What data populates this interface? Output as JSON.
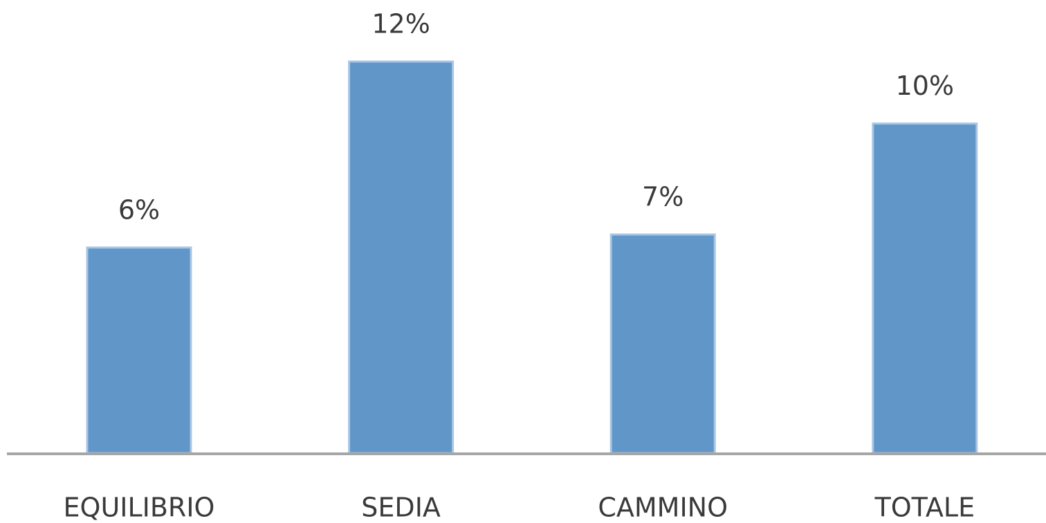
{
  "chart_data": {
    "type": "bar",
    "categories": [
      "EQUILIBRIO",
      "SEDIA",
      "CAMMINO",
      "TOTALE"
    ],
    "values": [
      6.3,
      12,
      6.7,
      10.1
    ],
    "value_labels": [
      "6%",
      "12%",
      "7%",
      "10%"
    ],
    "color": "#6096c8"
  }
}
